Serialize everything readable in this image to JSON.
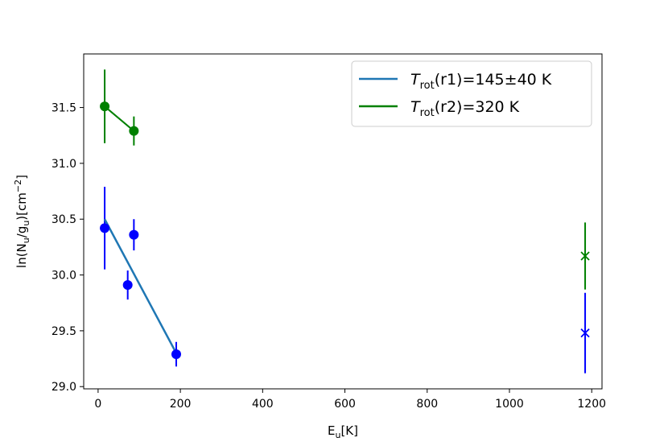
{
  "chart_data": {
    "type": "scatter",
    "xlabel": {
      "main": "E",
      "sub": "u",
      "rest": "[K]"
    },
    "ylabel": {
      "pre": "ln(N",
      "sub1": "u",
      "mid": "/g",
      "sub2": "u",
      "post": ")[cm",
      "sup": "−2",
      "end": "]"
    },
    "xlim": [
      -35,
      1225
    ],
    "ylim": [
      28.98,
      31.98
    ],
    "xticks": [
      0,
      200,
      400,
      600,
      800,
      1000,
      1200
    ],
    "yticks": [
      29.0,
      29.5,
      30.0,
      30.5,
      31.0,
      31.5
    ],
    "ytick_labels": [
      "29.0",
      "29.5",
      "30.0",
      "30.5",
      "31.0",
      "31.5"
    ],
    "fit_lines": [
      {
        "name_main": "T",
        "name_sub": "rot",
        "name_rest": "(r1)=145±40 K",
        "color": "#1f77b4",
        "x": [
          16,
          190
        ],
        "y": [
          30.5,
          29.3
        ]
      },
      {
        "name_main": "T",
        "name_sub": "rot",
        "name_rest": "(r2)=320 K",
        "color": "#008000",
        "x": [
          16,
          87
        ],
        "y": [
          31.5,
          31.29
        ]
      }
    ],
    "points": [
      {
        "x": 16,
        "y": 30.42,
        "yerr": 0.37,
        "color": "#0000ff",
        "marker": "circle"
      },
      {
        "x": 72,
        "y": 29.91,
        "yerr": 0.13,
        "color": "#0000ff",
        "marker": "circle"
      },
      {
        "x": 87,
        "y": 30.36,
        "yerr": 0.14,
        "color": "#0000ff",
        "marker": "circle"
      },
      {
        "x": 190,
        "y": 29.29,
        "yerr": 0.11,
        "color": "#0000ff",
        "marker": "circle"
      },
      {
        "x": 1184,
        "y": 29.48,
        "yerr": 0.36,
        "color": "#0000ff",
        "marker": "x"
      },
      {
        "x": 16,
        "y": 31.51,
        "yerr": 0.33,
        "color": "#008000",
        "marker": "circle"
      },
      {
        "x": 87,
        "y": 31.29,
        "yerr": 0.13,
        "color": "#008000",
        "marker": "circle"
      },
      {
        "x": 1184,
        "y": 30.17,
        "yerr": 0.3,
        "color": "#008000",
        "marker": "x"
      }
    ],
    "connections": [
      {
        "color": "#008000",
        "x": [
          16,
          87
        ],
        "y": [
          31.51,
          31.29
        ]
      }
    ],
    "legend_position": "top-right",
    "grid": false
  }
}
